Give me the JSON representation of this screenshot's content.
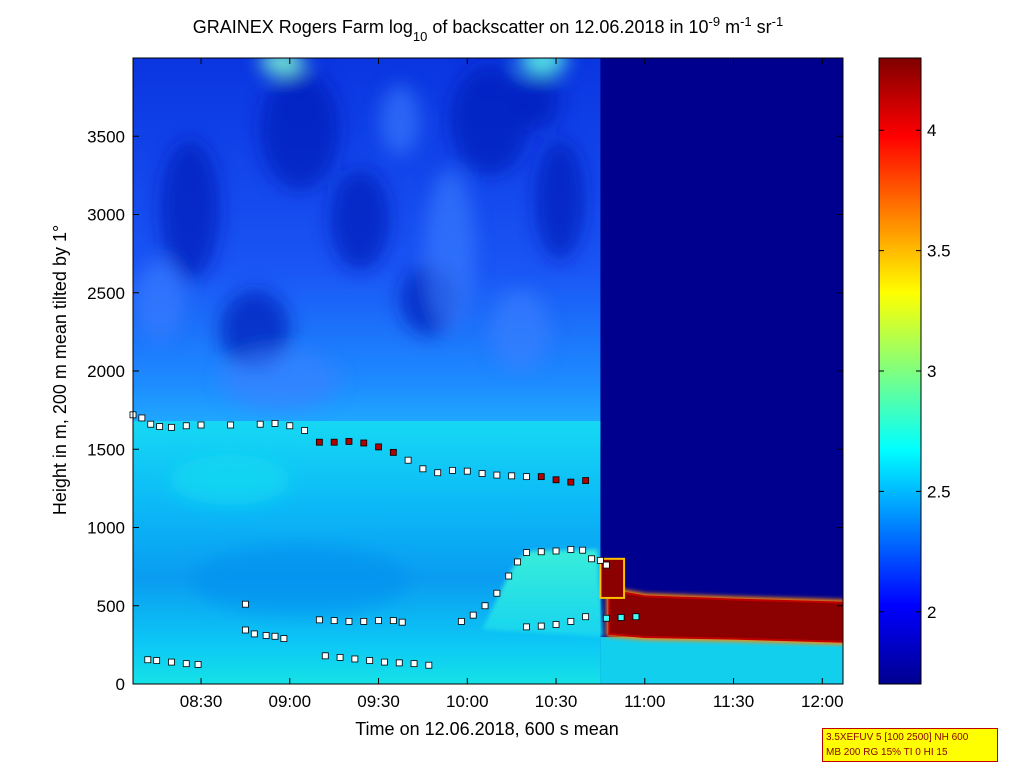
{
  "chart_data": {
    "type": "heatmap",
    "title": {
      "prefix": "GRAINEX Rogers Farm log",
      "sub1": "10",
      "mid": " of backscatter on 12.06.2018 in 10",
      "sup1": "-9",
      "mid2": " m",
      "sup2": "-1",
      "mid3": " sr",
      "sup3": "-1"
    },
    "xlabel": "Time on 12.06.2018, 600 s mean",
    "ylabel": "Height in m, 200 m mean tilted by 1°",
    "x_ticks": [
      "08:30",
      "09:00",
      "09:30",
      "10:00",
      "10:30",
      "11:00",
      "11:30",
      "12:00"
    ],
    "y_ticks": [
      "0",
      "500",
      "1000",
      "1500",
      "2000",
      "2500",
      "3000",
      "3500"
    ],
    "colorbar_ticks": [
      "2",
      "2.5",
      "3",
      "3.5",
      "4"
    ],
    "colormap": "jet",
    "color_range": [
      1.7,
      4.3
    ],
    "xlim": [
      "08:07",
      "12:07"
    ],
    "ylim": [
      0,
      4000
    ],
    "grid": false,
    "annotation": [
      "3.5XEFUV 5 [100 2500] NH 600",
      "MB 200 RG 15% TI 0 HI 15"
    ],
    "layer_markers": [
      {
        "name": "",
        "points": [
          [
            "08:07",
            1720
          ],
          [
            "08:10",
            1700
          ],
          [
            "08:13",
            1660
          ],
          [
            "08:16",
            1645
          ],
          [
            "08:20",
            1640
          ],
          [
            "08:25",
            1650
          ],
          [
            "08:30",
            1655
          ],
          [
            "08:40",
            1655
          ],
          [
            "08:50",
            1660
          ],
          [
            "08:55",
            1665
          ],
          [
            "09:00",
            1650
          ],
          [
            "09:05",
            1620
          ],
          [
            "09:10",
            1545
          ],
          [
            "09:15",
            1545
          ],
          [
            "09:20",
            1550
          ],
          [
            "09:25",
            1540
          ],
          [
            "09:30",
            1515
          ],
          [
            "09:35",
            1480
          ],
          [
            "09:40",
            1430
          ],
          [
            "09:45",
            1375
          ],
          [
            "09:50",
            1350
          ],
          [
            "09:55",
            1365
          ],
          [
            "10:00",
            1360
          ],
          [
            "10:05",
            1345
          ],
          [
            "10:10",
            1335
          ],
          [
            "10:15",
            1330
          ],
          [
            "10:20",
            1325
          ],
          [
            "10:25",
            1325
          ],
          [
            "10:30",
            1305
          ],
          [
            "10:35",
            1290
          ],
          [
            "10:40",
            1300
          ]
        ]
      },
      {
        "name": "",
        "points": [
          [
            "09:58",
            400
          ],
          [
            "10:02",
            440
          ],
          [
            "10:06",
            500
          ],
          [
            "10:10",
            580
          ],
          [
            "10:14",
            690
          ],
          [
            "10:17",
            780
          ],
          [
            "10:20",
            840
          ],
          [
            "10:25",
            845
          ],
          [
            "10:30",
            850
          ],
          [
            "10:35",
            860
          ],
          [
            "10:39",
            855
          ],
          [
            "10:42",
            800
          ],
          [
            "10:45",
            790
          ],
          [
            "10:47",
            760
          ]
        ]
      },
      {
        "name": "",
        "points": [
          [
            "10:20",
            365
          ],
          [
            "10:25",
            370
          ],
          [
            "10:30",
            380
          ],
          [
            "10:35",
            400
          ],
          [
            "10:40",
            430
          ],
          [
            "10:47",
            420
          ],
          [
            "10:52",
            425
          ],
          [
            "10:57",
            430
          ]
        ]
      },
      {
        "name": "",
        "points": [
          [
            "09:10",
            410
          ],
          [
            "09:15",
            405
          ],
          [
            "09:20",
            400
          ],
          [
            "09:25",
            400
          ],
          [
            "09:30",
            405
          ],
          [
            "09:35",
            405
          ],
          [
            "09:38",
            395
          ]
        ]
      },
      {
        "name": "",
        "points": [
          [
            "08:45",
            345
          ],
          [
            "08:48",
            320
          ],
          [
            "08:52",
            310
          ],
          [
            "08:55",
            305
          ],
          [
            "08:58",
            290
          ]
        ]
      },
      {
        "name": "",
        "points": [
          [
            "08:12",
            155
          ],
          [
            "08:15",
            150
          ],
          [
            "08:20",
            140
          ],
          [
            "08:25",
            130
          ],
          [
            "08:29",
            125
          ]
        ]
      },
      {
        "name": "",
        "points": [
          [
            "09:12",
            180
          ],
          [
            "09:17",
            170
          ],
          [
            "09:22",
            160
          ],
          [
            "09:27",
            150
          ],
          [
            "09:32",
            140
          ],
          [
            "09:37",
            135
          ],
          [
            "09:42",
            130
          ],
          [
            "09:47",
            120
          ]
        ]
      },
      {
        "name": "",
        "points": [
          [
            "08:45",
            510
          ]
        ]
      }
    ],
    "regions": {
      "signal_end_time": "10:45",
      "surface_layer_top": 1680,
      "dense_aerosol_layer": [
        [
          "10:48",
          320,
          600
        ],
        [
          "11:00",
          300,
          560
        ],
        [
          "11:30",
          290,
          540
        ],
        [
          "12:07",
          270,
          520
        ]
      ],
      "dense_aerosol_patch": [
        [
          "10:45",
          550,
          800
        ],
        [
          "10:53",
          600,
          790
        ]
      ]
    }
  }
}
